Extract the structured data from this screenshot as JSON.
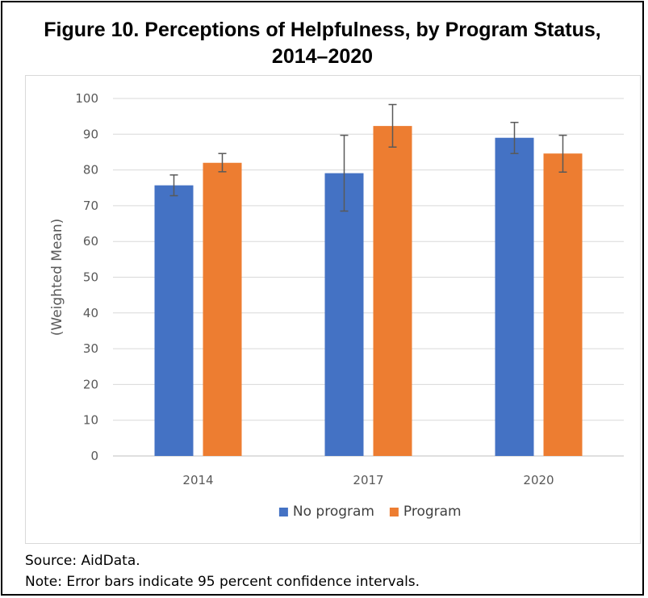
{
  "title_line1": "Figure 10. Perceptions of Helpfulness, by Program Status,",
  "title_line2": "2014–2020",
  "source": "Source: AidData.",
  "note": "Note: Error bars indicate 95 percent confidence intervals.",
  "chart_data": {
    "type": "bar",
    "title": "Figure 10. Perceptions of Helpfulness, by Program Status, 2014–2020",
    "xlabel": "",
    "ylabel": "(Weighted Mean)",
    "categories": [
      "2014",
      "2017",
      "2020"
    ],
    "ylim": [
      0,
      100
    ],
    "yticks": [
      0,
      10,
      20,
      30,
      40,
      50,
      60,
      70,
      80,
      90,
      100
    ],
    "grid": true,
    "legend_position": "bottom",
    "series": [
      {
        "name": "No program",
        "color": "#4472c4",
        "values": [
          75.7,
          79.1,
          89.0
        ],
        "error_low": [
          72.8,
          68.5,
          84.6
        ],
        "error_high": [
          78.6,
          89.7,
          93.3
        ]
      },
      {
        "name": "Program",
        "color": "#ed7d31",
        "values": [
          82.0,
          92.3,
          84.6
        ],
        "error_low": [
          79.5,
          86.4,
          79.4
        ],
        "error_high": [
          84.6,
          98.3,
          89.7
        ]
      }
    ]
  }
}
